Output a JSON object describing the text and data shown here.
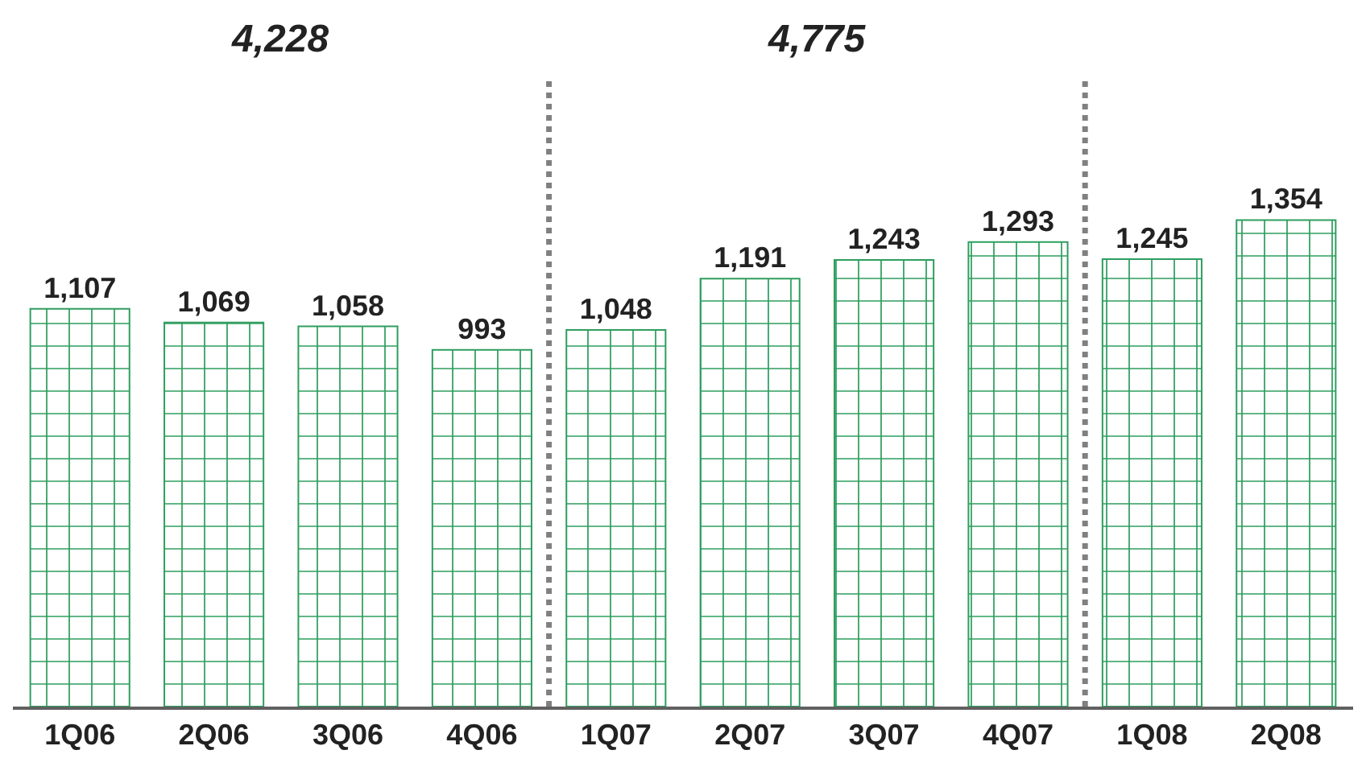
{
  "chart_data": {
    "type": "bar",
    "categories": [
      "1Q06",
      "2Q06",
      "3Q06",
      "4Q06",
      "1Q07",
      "2Q07",
      "3Q07",
      "4Q07",
      "1Q08",
      "2Q08"
    ],
    "values": [
      1107,
      1069,
      1058,
      993,
      1048,
      1191,
      1243,
      1293,
      1245,
      1354
    ],
    "value_labels": [
      "1,107",
      "1,069",
      "1,058",
      "993",
      "1,048",
      "1,191",
      "1,243",
      "1,293",
      "1,245",
      "1,354"
    ],
    "color": "#2e9e5e",
    "annotations": [
      "4,228",
      "4,775"
    ]
  }
}
